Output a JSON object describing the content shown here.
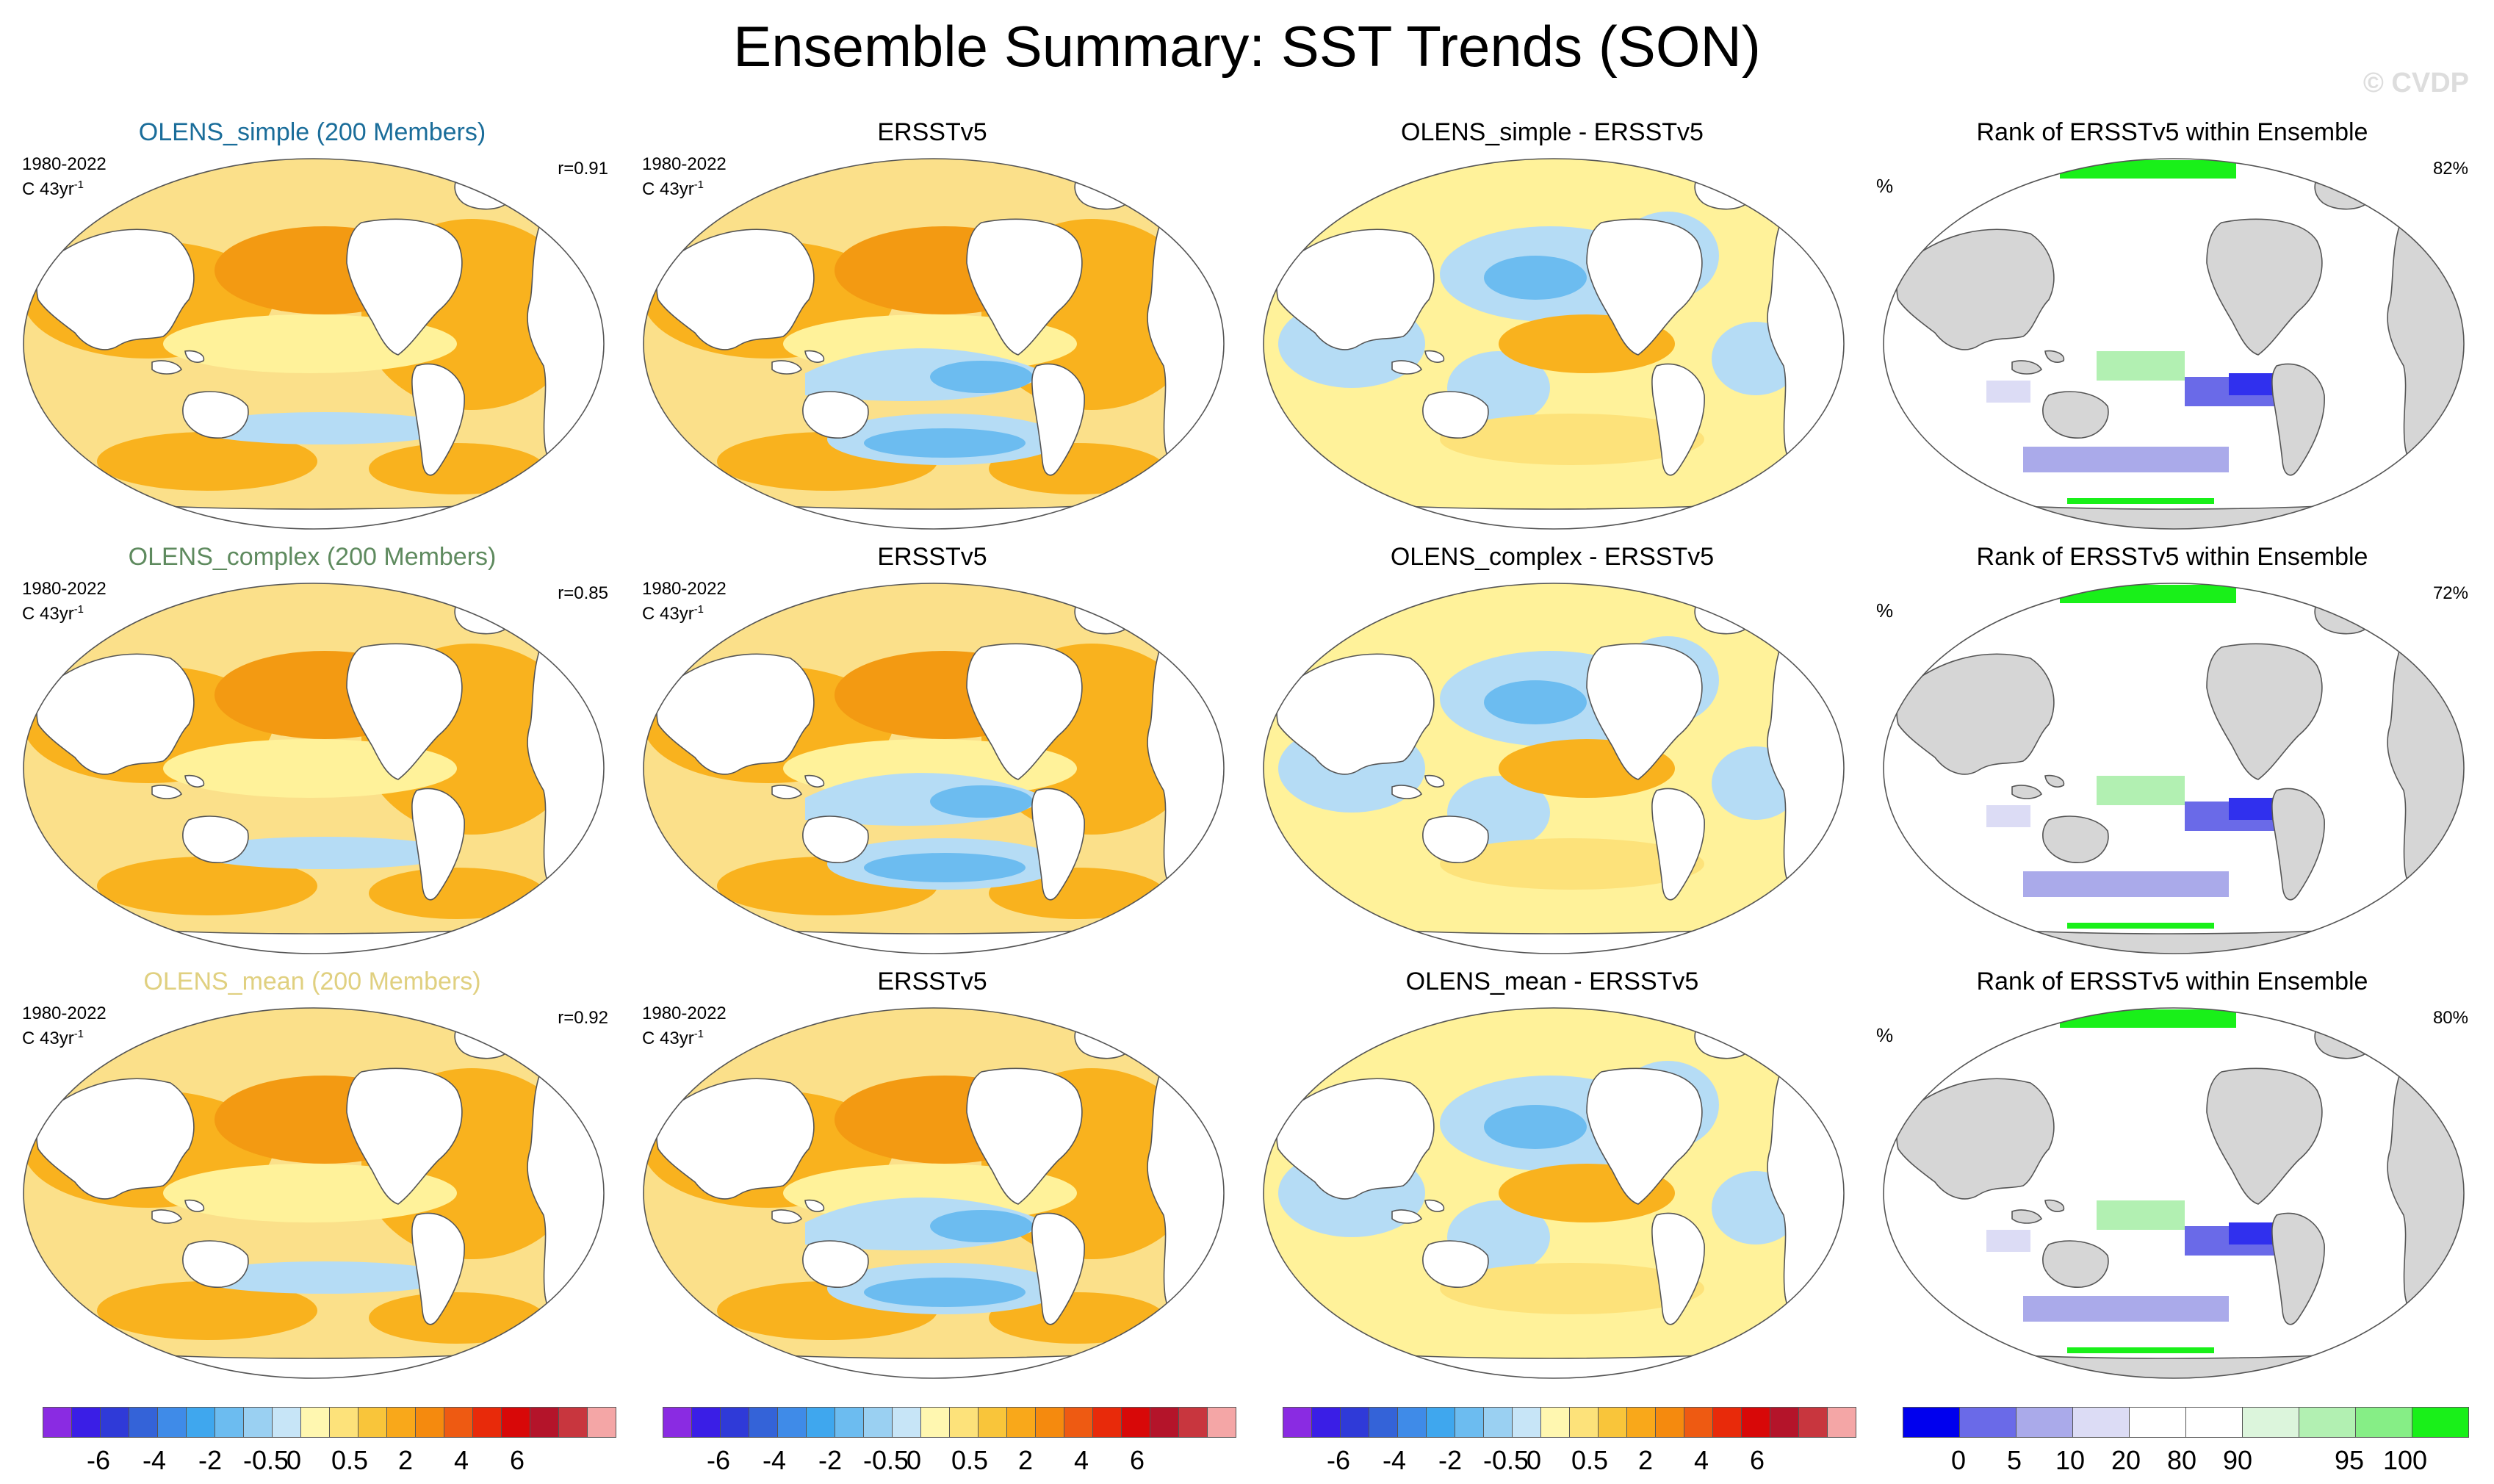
{
  "title": "Ensemble Summary: SST Trends (SON)",
  "watermark": "© CVDP",
  "colors": {
    "ocean_bg": "#fbe08a",
    "orange": "#f9b21e",
    "dark_orange": "#f39a12",
    "yellow": "#fff29a",
    "light_blue": "#b5dcf5",
    "mid_blue": "#6cbcf0",
    "blue": "#3fa7ee",
    "land": "#ffffff",
    "rank_land": "#d6d6d6",
    "rank_low": "#3030ee",
    "rank_high": "#19f019"
  },
  "rows": [
    {
      "model": {
        "title": "OLENS_simple (200 Members)",
        "title_color": "#1a6d9a",
        "period": "1980-2022",
        "units": "C 43yr",
        "units_exp": "-1",
        "r": "r=0.91"
      },
      "obs": {
        "title": "ERSSTv5",
        "period": "1980-2022",
        "units": "C 43yr",
        "units_exp": "-1"
      },
      "diff": {
        "title": "OLENS_simple - ERSSTv5"
      },
      "rank": {
        "title": "Rank of ERSSTv5 within Ensemble",
        "unit": "%",
        "pct": "82%"
      }
    },
    {
      "model": {
        "title": "OLENS_complex (200 Members)",
        "title_color": "#5e8a5e",
        "period": "1980-2022",
        "units": "C 43yr",
        "units_exp": "-1",
        "r": "r=0.85"
      },
      "obs": {
        "title": "ERSSTv5",
        "period": "1980-2022",
        "units": "C 43yr",
        "units_exp": "-1"
      },
      "diff": {
        "title": "OLENS_complex - ERSSTv5"
      },
      "rank": {
        "title": "Rank of ERSSTv5 within Ensemble",
        "unit": "%",
        "pct": "72%"
      }
    },
    {
      "model": {
        "title": "OLENS_mean (200 Members)",
        "title_color": "#e0d080",
        "period": "1980-2022",
        "units": "C 43yr",
        "units_exp": "-1",
        "r": "r=0.92"
      },
      "obs": {
        "title": "ERSSTv5",
        "period": "1980-2022",
        "units": "C 43yr",
        "units_exp": "-1"
      },
      "diff": {
        "title": "OLENS_mean - ERSSTv5"
      },
      "rank": {
        "title": "Rank of ERSSTv5 within Ensemble",
        "unit": "%",
        "pct": "80%"
      }
    }
  ],
  "colorbar_trend": {
    "colors": [
      "#8a2be2",
      "#3a1ee6",
      "#2f3ad8",
      "#3463d8",
      "#3f8be8",
      "#3fa7ee",
      "#6cbcf0",
      "#9ad0f2",
      "#c7e5f7",
      "#fff7b0",
      "#fde27a",
      "#f9c53a",
      "#f9a81a",
      "#f58a0e",
      "#ee5a12",
      "#e82a0a",
      "#d80808",
      "#b4142a",
      "#c8363e",
      "#f4a6a6"
    ],
    "labels": [
      "-6",
      "-4",
      "-2",
      "-0.5",
      "0",
      "0.5",
      "2",
      "4",
      "6"
    ]
  },
  "colorbar_rank": {
    "colors": [
      "#0000ee",
      "#6a6ae8",
      "#aaaaea",
      "#dcdcf5",
      "#ffffff",
      "#ffffff",
      "#dcf5dc",
      "#b2f0b2",
      "#86ee86",
      "#19f019"
    ],
    "labels": [
      "0",
      "5",
      "10",
      "20",
      "80",
      "90",
      "95",
      "100"
    ]
  }
}
